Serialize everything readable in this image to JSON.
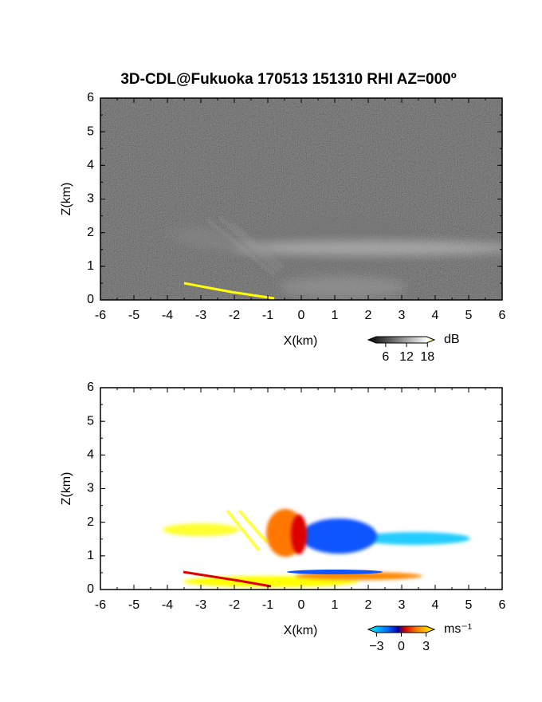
{
  "chart_data": [
    {
      "type": "heatmap",
      "title": "3D-CDL@Fukuoka 170513 151310 RHI AZ=000º",
      "xlabel": "X(km)",
      "ylabel": "Z(km)",
      "xlim": [
        -6,
        6
      ],
      "xticks": [
        -6,
        -5,
        -4,
        -3,
        -2,
        -1,
        0,
        1,
        2,
        3,
        4,
        5,
        6
      ],
      "ylim": [
        0,
        6
      ],
      "yticks": [
        0,
        1,
        2,
        3,
        4,
        5,
        6
      ],
      "colorbar": {
        "label": "dB",
        "clim": [
          1,
          20
        ],
        "ticks": [
          6,
          12,
          18
        ]
      }
    },
    {
      "type": "heatmap",
      "xlabel": "X(km)",
      "ylabel": "Z(km)",
      "xlim": [
        -6,
        6
      ],
      "xticks": [
        -6,
        -5,
        -4,
        -3,
        -2,
        -1,
        0,
        1,
        2,
        3,
        4,
        5,
        6
      ],
      "ylim": [
        0,
        6
      ],
      "yticks": [
        0,
        1,
        2,
        3,
        4,
        5,
        6
      ],
      "colorbar": {
        "label": "ms⁻¹",
        "clim": [
          -4,
          4
        ],
        "ticks": [
          {
            "value": -3,
            "label": "−3"
          },
          0,
          3
        ]
      }
    }
  ]
}
